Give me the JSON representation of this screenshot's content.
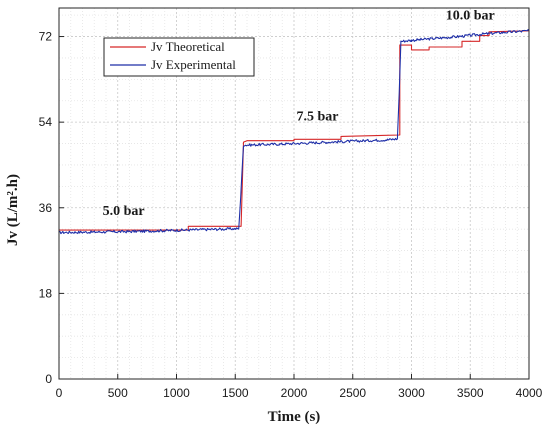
{
  "chart_data": {
    "type": "line",
    "title": "",
    "xlabel": "Time (s)",
    "ylabel": "Jv (L/m².h)",
    "xlim": [
      0,
      4000
    ],
    "ylim": [
      0,
      78
    ],
    "xticks": [
      0,
      500,
      1000,
      1500,
      2000,
      2500,
      3000,
      3500,
      4000
    ],
    "yticks": [
      0,
      18,
      36,
      54,
      72
    ],
    "xtick_labels": [
      "0",
      "500",
      "1000",
      "1500",
      "2000",
      "2500",
      "3000",
      "3500",
      "4000"
    ],
    "ytick_labels": [
      "0",
      "18",
      "36",
      "54",
      "72"
    ],
    "grid": true,
    "legend_position": "top-left",
    "annotations": [
      {
        "text": "5.0 bar",
        "x": 550,
        "y": 34.5
      },
      {
        "text": "7.5 bar",
        "x": 2200,
        "y": 54.3
      },
      {
        "text": "10.0 bar",
        "x": 3500,
        "y": 75.6
      }
    ],
    "series": [
      {
        "name": "Jv Theoretical",
        "color": "#d62728",
        "x": [
          0,
          1100,
          1100,
          1550,
          1570,
          1600,
          2000,
          2000,
          2400,
          2400,
          2900,
          2900,
          3000,
          3000,
          3150,
          3150,
          3430,
          3430,
          3580,
          3580,
          3660,
          3660,
          4000
        ],
        "y": [
          31.3,
          31.3,
          32.1,
          32.1,
          49.8,
          50.1,
          50.1,
          50.4,
          50.4,
          51.0,
          51.3,
          70.2,
          70.2,
          69.2,
          69.2,
          69.8,
          69.8,
          71.0,
          71.0,
          72.2,
          72.2,
          73.0,
          73.2
        ]
      },
      {
        "name": "Jv Experimental",
        "color": "#1f2fa8",
        "x": [
          0,
          300,
          600,
          900,
          1200,
          1530,
          1550,
          1570,
          1600,
          1900,
          2200,
          2500,
          2800,
          2880,
          2895,
          2910,
          3000,
          3200,
          3400,
          3600,
          3800,
          4000
        ],
        "y": [
          30.8,
          30.9,
          31.0,
          31.2,
          31.4,
          31.6,
          40.0,
          49.2,
          49.2,
          49.4,
          49.7,
          50.0,
          50.3,
          50.5,
          60.0,
          71.0,
          71.2,
          71.6,
          72.0,
          72.5,
          72.9,
          73.2
        ]
      }
    ]
  }
}
